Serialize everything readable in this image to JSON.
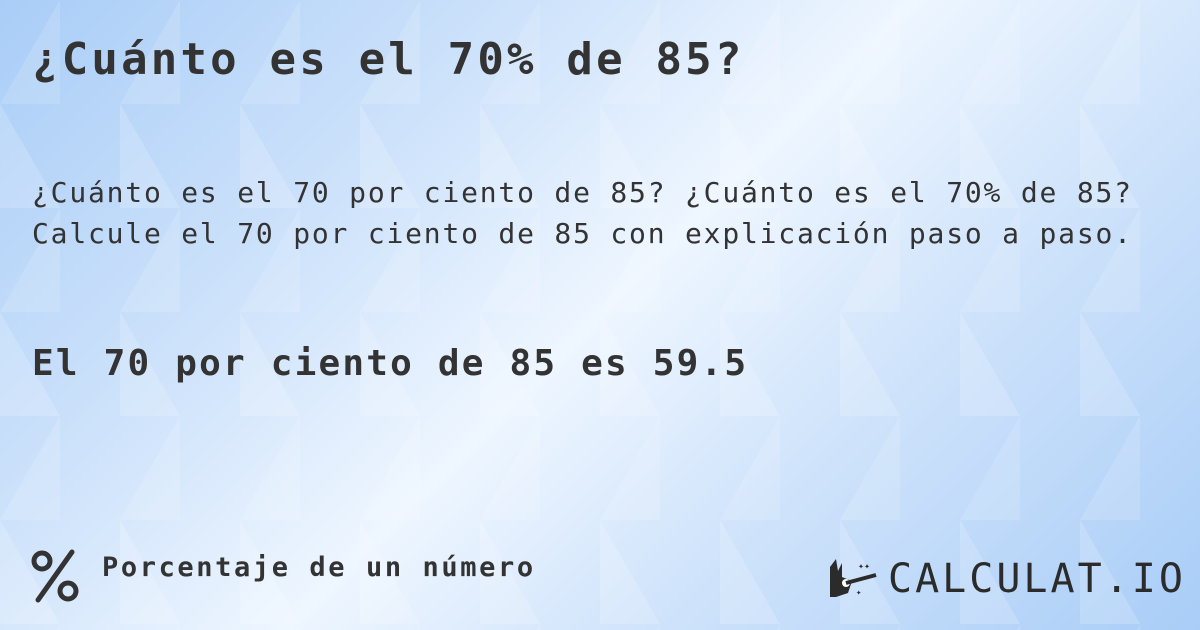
{
  "title": "¿Cuánto es el 70% de 85?",
  "description": [
    "¿Cuánto es el 70 por ciento de 85? ¿Cuánto es el 70% de 85?",
    "Calcule el 70 por ciento de 85 con explicación paso a paso."
  ],
  "result": "El 70 por ciento de 85 es 59.5",
  "footer": {
    "category": "Porcentaje de un número",
    "category_icon": "percent-icon",
    "logo_text": "CALCULAT.IO",
    "logo_icon": "magic-hand-icon"
  }
}
